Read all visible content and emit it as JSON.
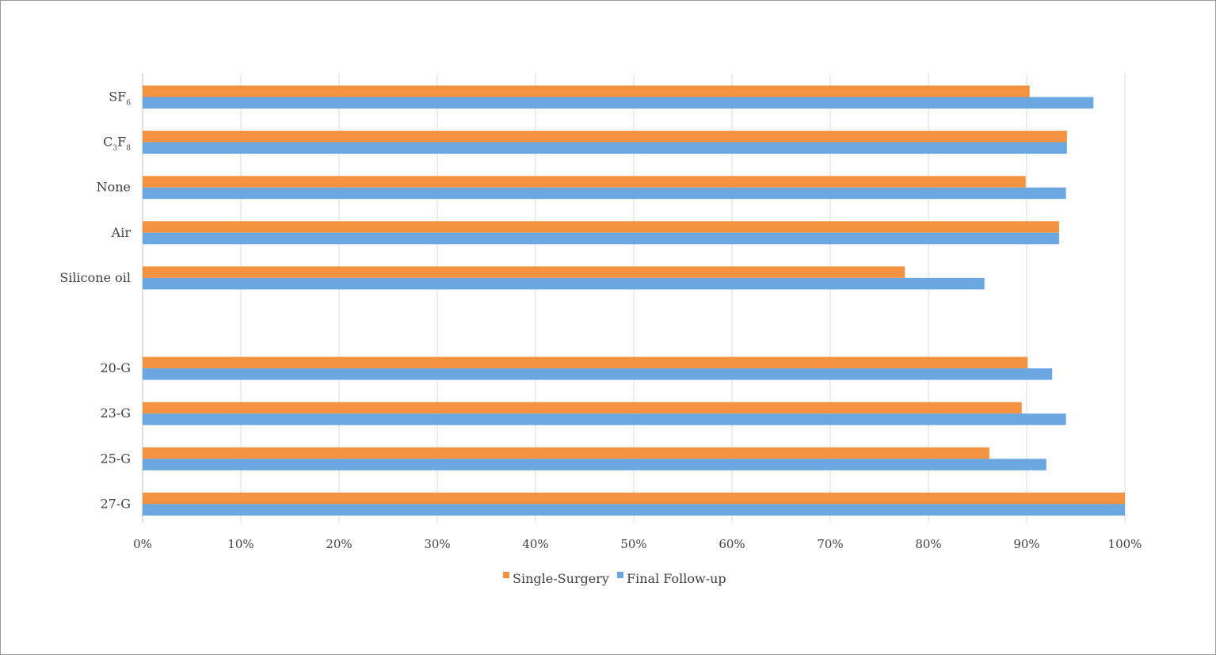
{
  "chart_data": {
    "type": "bar",
    "orientation": "horizontal",
    "categories": [
      {
        "label": "SF",
        "sub": "6"
      },
      {
        "label": "C",
        "sub": "3",
        "label2": "F",
        "sub2": "8"
      },
      {
        "label": "None"
      },
      {
        "label": "Air"
      },
      {
        "label": "Silicone oil"
      },
      {
        "label": ""
      },
      {
        "label": "20-G"
      },
      {
        "label": "23-G"
      },
      {
        "label": "25-G"
      },
      {
        "label": "27-G"
      }
    ],
    "series": [
      {
        "name": "Single-Surgery",
        "color": "#f39240",
        "values": [
          90.3,
          94.1,
          89.9,
          93.3,
          77.6,
          null,
          90.1,
          89.5,
          86.2,
          100
        ]
      },
      {
        "name": "Final Follow-up",
        "color": "#6aa6e0",
        "values": [
          96.8,
          94.1,
          94.0,
          93.3,
          85.7,
          null,
          92.6,
          94.0,
          92.0,
          100
        ]
      }
    ],
    "xlim": [
      0,
      100
    ],
    "xticks": [
      "0%",
      "10%",
      "20%",
      "30%",
      "40%",
      "50%",
      "60%",
      "70%",
      "80%",
      "90%",
      "100%"
    ],
    "grid": true,
    "legend": "bottom-center"
  }
}
